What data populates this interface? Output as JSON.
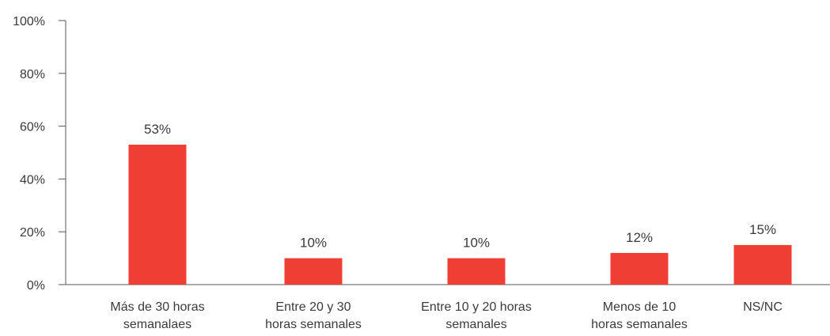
{
  "chart_data": {
    "type": "bar",
    "title": "",
    "xlabel": "",
    "ylabel": "",
    "ylim": [
      0,
      100
    ],
    "yticks": [
      "0%",
      "20%",
      "40%",
      "60%",
      "80%",
      "100%"
    ],
    "categories": [
      [
        "Más de 30 horas",
        "semanalaes"
      ],
      [
        "Entre 20 y 30",
        "horas semanales"
      ],
      [
        "Entre 10 y 20 horas",
        "semanales"
      ],
      [
        "Menos de 10",
        "horas semanales"
      ],
      [
        "NS/NC"
      ]
    ],
    "values": [
      53,
      10,
      10,
      12,
      15
    ],
    "data_labels": [
      "53%",
      "10%",
      "10%",
      "12%",
      "15%"
    ],
    "bar_color": "#ef3e33",
    "grid": false
  }
}
